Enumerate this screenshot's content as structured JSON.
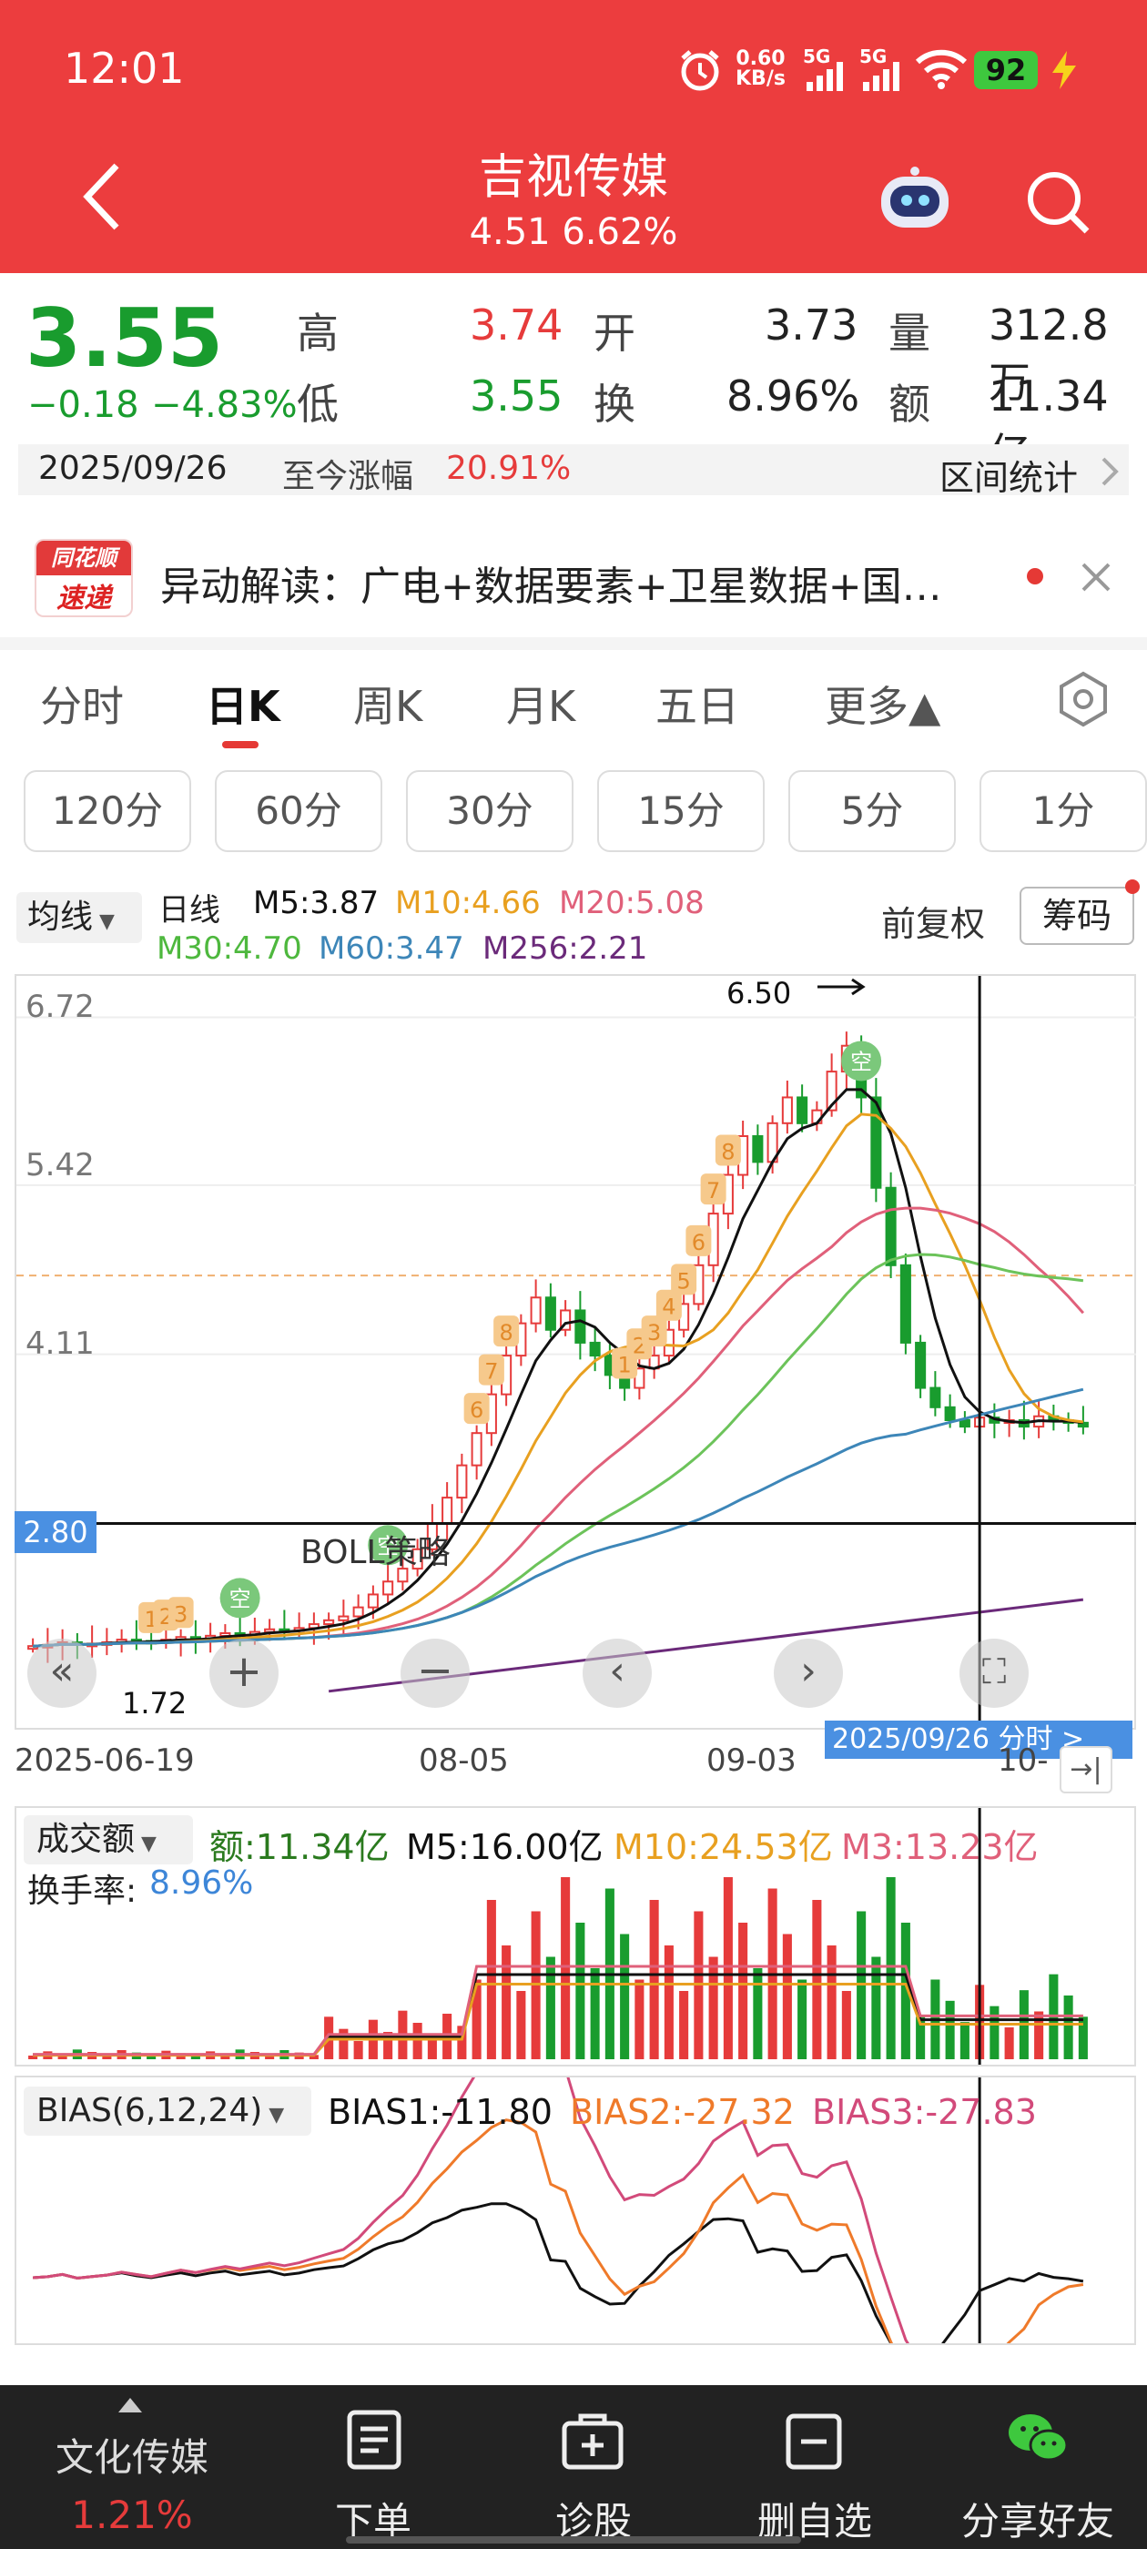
{
  "status_bar": {
    "time": "12:01",
    "speed_top": "0.60",
    "speed_bottom": "KB/s",
    "net1": "5G",
    "net2": "5G",
    "battery": "92"
  },
  "header": {
    "title": "吉视传媒",
    "subtitle": "4.51 6.62%"
  },
  "quote": {
    "price": "3.55",
    "change": "−0.18",
    "change_pct": "−4.83%",
    "high_label": "高",
    "high": "3.74",
    "open_label": "开",
    "open": "3.73",
    "vol_label": "量",
    "vol": "312.8万",
    "low_label": "低",
    "low": "3.55",
    "turn_label": "换",
    "turn": "8.96%",
    "amt_label": "额",
    "amt": "11.34亿"
  },
  "dateline": {
    "date": "2025/09/26",
    "rise_label": "至今涨幅",
    "rise": "20.91%",
    "stats": "区间统计"
  },
  "news": {
    "badge_top": "同花顺",
    "badge_bottom": "速递",
    "text": "异动解读：广电+数据要素+卫星数据+国…"
  },
  "tabs": [
    "分时",
    "日K",
    "周K",
    "月K",
    "五日",
    "更多▲"
  ],
  "periods": [
    "120分",
    "60分",
    "30分",
    "15分",
    "5分",
    "1分"
  ],
  "ma": {
    "select": "均线",
    "kind": "日线",
    "m5": "M5:3.87",
    "m10": "M10:4.66",
    "m20": "M20:5.08",
    "m30": "M30:4.70",
    "m60": "M60:3.47",
    "m256": "M256:2.21",
    "fq": "前复权",
    "chip": "筹码"
  },
  "colors": {
    "red": "#e63b3b",
    "green": "#199c2e",
    "m5": "#111111",
    "m10": "#e8a020",
    "m20": "#e0607a",
    "m30": "#6cc35a",
    "m60": "#3d86b8",
    "m256": "#6b2a7a",
    "blue": "#4a90e2"
  },
  "kchart": {
    "y_ticks": [
      "6.72",
      "5.42",
      "4.11",
      "2.80"
    ],
    "max_label": "6.50",
    "min_label": "1.72",
    "cursor_price": "2.80",
    "boll": "BOLL策略",
    "x_ticks": [
      "2025-06-19",
      "08-05",
      "09-03",
      "10-"
    ],
    "cursor_date": "2025/09/26",
    "cursor_link": "分时 >"
  },
  "chart_data": {
    "type": "candlestick",
    "y_range": [
      1.4,
      6.9
    ],
    "closes": [
      1.85,
      1.86,
      1.88,
      1.86,
      1.87,
      1.88,
      1.9,
      1.89,
      1.88,
      1.9,
      1.92,
      1.91,
      1.93,
      1.95,
      1.94,
      1.96,
      1.98,
      1.97,
      1.99,
      2.02,
      2.05,
      2.08,
      2.15,
      2.25,
      2.35,
      2.45,
      2.6,
      2.8,
      3.0,
      3.25,
      3.5,
      3.8,
      4.1,
      4.35,
      4.55,
      4.3,
      4.45,
      4.2,
      4.1,
      3.95,
      3.85,
      4.0,
      4.1,
      4.3,
      4.5,
      4.8,
      5.2,
      5.5,
      5.8,
      5.6,
      5.9,
      6.1,
      5.9,
      6.0,
      6.3,
      6.5,
      6.1,
      5.4,
      4.8,
      4.2,
      3.85,
      3.7,
      3.6,
      3.55,
      3.62,
      3.58,
      3.6,
      3.55,
      3.63,
      3.6,
      3.58,
      3.55
    ]
  },
  "volume": {
    "select": "成交额",
    "amt": "额:11.34亿",
    "m5": "M5:16.00亿",
    "m10": "M10:24.53亿",
    "m3": "M3:13.23亿",
    "turn_label": "换手率:",
    "turn": "8.96%"
  },
  "bias": {
    "select": "BIAS(6,12,24)",
    "b1": "BIAS1:-11.80",
    "b2": "BIAS2:-27.32",
    "b3": "BIAS3:-27.83"
  },
  "bottom_nav": {
    "sector": "文化传媒",
    "sector_pct": "1.21%",
    "order": "下单",
    "diagnose": "诊股",
    "remove": "删自选",
    "share": "分享好友"
  }
}
